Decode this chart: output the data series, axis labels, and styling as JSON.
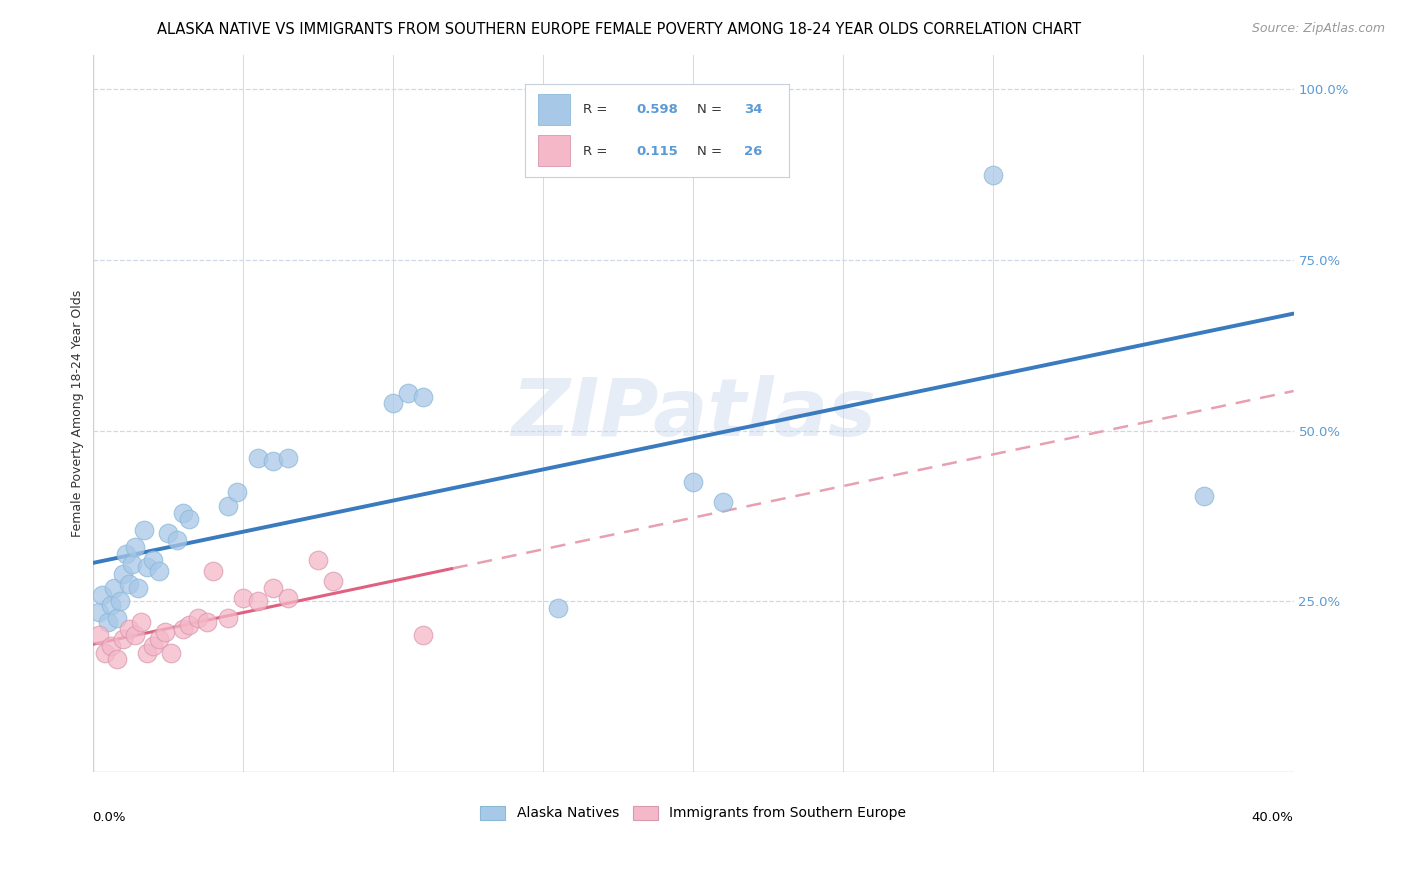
{
  "title": "ALASKA NATIVE VS IMMIGRANTS FROM SOUTHERN EUROPE FEMALE POVERTY AMONG 18-24 YEAR OLDS CORRELATION CHART",
  "source": "Source: ZipAtlas.com",
  "ylabel": "Female Poverty Among 18-24 Year Olds",
  "xlim": [
    0.0,
    0.4
  ],
  "ylim": [
    0.0,
    1.05
  ],
  "watermark": "ZIPatlas",
  "blue_color": "#a8c8e8",
  "pink_color": "#f4b8c8",
  "blue_line_color": "#3a7abf",
  "pink_line_color": "#e06080",
  "pink_line_dash_color": "#e8a0b0",
  "alaska_x": [
    0.002,
    0.003,
    0.005,
    0.006,
    0.007,
    0.008,
    0.009,
    0.01,
    0.011,
    0.012,
    0.013,
    0.014,
    0.015,
    0.017,
    0.018,
    0.02,
    0.022,
    0.025,
    0.028,
    0.03,
    0.032,
    0.045,
    0.048,
    0.055,
    0.06,
    0.065,
    0.1,
    0.105,
    0.11,
    0.155,
    0.2,
    0.21,
    0.3,
    0.37
  ],
  "alaska_y": [
    0.235,
    0.26,
    0.22,
    0.245,
    0.27,
    0.225,
    0.25,
    0.29,
    0.32,
    0.275,
    0.305,
    0.33,
    0.27,
    0.355,
    0.3,
    0.31,
    0.295,
    0.35,
    0.34,
    0.38,
    0.37,
    0.39,
    0.41,
    0.46,
    0.455,
    0.46,
    0.54,
    0.555,
    0.55,
    0.24,
    0.425,
    0.395,
    0.875,
    0.405
  ],
  "immig_x": [
    0.002,
    0.004,
    0.006,
    0.008,
    0.01,
    0.012,
    0.014,
    0.016,
    0.018,
    0.02,
    0.022,
    0.024,
    0.026,
    0.03,
    0.032,
    0.035,
    0.038,
    0.04,
    0.045,
    0.05,
    0.055,
    0.06,
    0.065,
    0.075,
    0.08,
    0.11
  ],
  "immig_y": [
    0.2,
    0.175,
    0.185,
    0.165,
    0.195,
    0.21,
    0.2,
    0.22,
    0.175,
    0.185,
    0.195,
    0.205,
    0.175,
    0.21,
    0.215,
    0.225,
    0.22,
    0.295,
    0.225,
    0.255,
    0.25,
    0.27,
    0.255,
    0.31,
    0.28,
    0.2
  ],
  "title_fontsize": 10.5,
  "source_fontsize": 9,
  "axis_label_fontsize": 9,
  "tick_fontsize": 9.5
}
